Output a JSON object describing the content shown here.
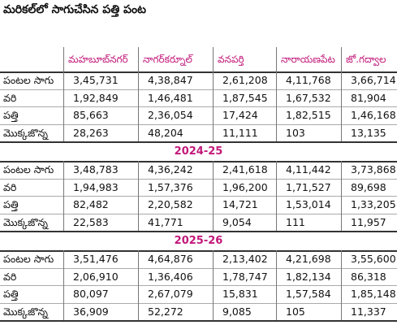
{
  "title": "మరికల్‌లో సాగుచేసిన పత్తి పంట",
  "table": {
    "header": [
      "మహబూబ్‌నగర్",
      "నాగర్‌కర్నూల్",
      "వనపర్తి",
      "నారాయణపేట",
      "జో.గద్వాల"
    ],
    "sections": [
      {
        "rows": [
          {
            "label": "పంటల సాగు",
            "values": [
              "3,45,731",
              "4,38,847",
              "2,61,208",
              "4,11,768",
              "3,66,714"
            ]
          },
          {
            "label": "వరి",
            "values": [
              "1,92,849",
              "1,46,481",
              "1,87,545",
              "1,67,532",
              "81,904"
            ]
          },
          {
            "label": "పత్తి",
            "values": [
              "85,663",
              "2,36,054",
              "17,424",
              "1,82,515",
              "1,46,168"
            ]
          },
          {
            "label": "మొక్కజొన్న",
            "values": [
              "28,263",
              "48,204",
              "11,111",
              "103",
              "13,135"
            ]
          }
        ]
      },
      {
        "label": "2024-25",
        "rows": [
          {
            "label": "పంటల సాగు",
            "values": [
              "3,48,783",
              "4,36,242",
              "2,41,618",
              "4,11,442",
              "3,73,868"
            ]
          },
          {
            "label": "వరి",
            "values": [
              "1,94,983",
              "1,57,376",
              "1,96,200",
              "1,71,527",
              "89,698"
            ]
          },
          {
            "label": "పత్తి",
            "values": [
              "82,482",
              "2,20,582",
              "14,721",
              "1,53,014",
              "1,33,205"
            ]
          },
          {
            "label": "మొక్కజొన్న",
            "values": [
              "22,583",
              "41,771",
              "9,054",
              "111",
              "11,957"
            ]
          }
        ]
      },
      {
        "label": "2025-26",
        "rows": [
          {
            "label": "పంటల సాగు",
            "values": [
              "3,51,476",
              "4,64,876",
              "2,13,402",
              "4,21,698",
              "3,55,600"
            ]
          },
          {
            "label": "వరి",
            "values": [
              "2,06,910",
              "1,36,406",
              "1,78,747",
              "1,82,134",
              "86,318"
            ]
          },
          {
            "label": "పత్తి",
            "values": [
              "80,097",
              "2,67,079",
              "15,831",
              "1,57,584",
              "1,85,148"
            ]
          },
          {
            "label": "మొక్కజొన్న",
            "values": [
              "36,909",
              "52,272",
              "9,085",
              "105",
              "11,337"
            ]
          }
        ]
      }
    ]
  }
}
